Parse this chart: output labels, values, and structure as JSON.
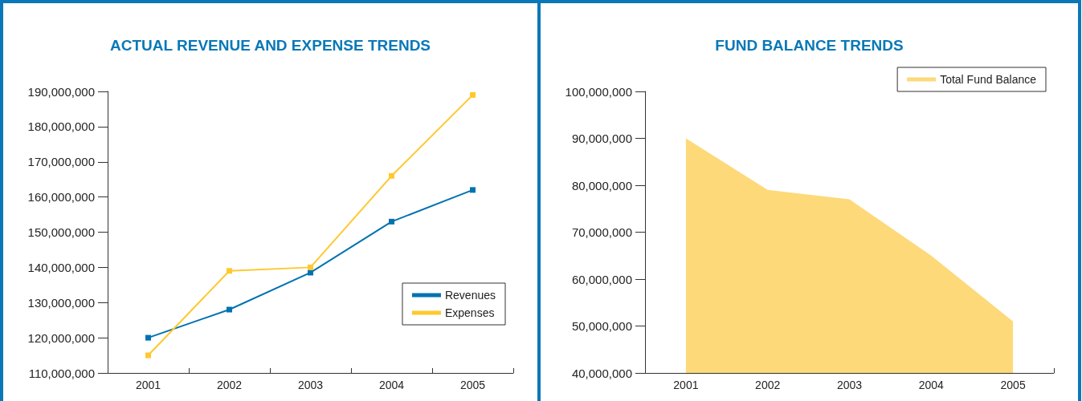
{
  "chart_data": [
    {
      "type": "line",
      "title": "ACTUAL REVENUE AND EXPENSE TRENDS",
      "categories": [
        "2001",
        "2002",
        "2003",
        "2004",
        "2005"
      ],
      "series": [
        {
          "name": "Revenues",
          "color": "#0072b1",
          "values": [
            120000000,
            128000000,
            138500000,
            153000000,
            162000000
          ]
        },
        {
          "name": "Expenses",
          "color": "#ffc82e",
          "values": [
            115000000,
            139000000,
            140000000,
            166000000,
            189000000
          ]
        }
      ],
      "ylim": [
        110000000,
        190000000
      ],
      "yticks": [
        {
          "value": 110000000,
          "label": "110,000,000"
        },
        {
          "value": 120000000,
          "label": "120,000,000"
        },
        {
          "value": 130000000,
          "label": "130,000,000"
        },
        {
          "value": 140000000,
          "label": "140,000,000"
        },
        {
          "value": 150000000,
          "label": "150,000,000"
        },
        {
          "value": 160000000,
          "label": "160,000,000"
        },
        {
          "value": 170000000,
          "label": "170,000,000"
        },
        {
          "value": 180000000,
          "label": "180,000,000"
        },
        {
          "value": 190000000,
          "label": "190,000,000"
        }
      ],
      "grid": false,
      "legend": "bottom right",
      "marker": "square",
      "line_style": "solid"
    },
    {
      "type": "area",
      "title": "FUND BALANCE TRENDS",
      "categories": [
        "2001",
        "2002",
        "2003",
        "2004",
        "2005"
      ],
      "series": [
        {
          "name": "Total Fund Balance",
          "color": "#fdd97a",
          "values": [
            90000000,
            79000000,
            77000000,
            65000000,
            51000000
          ]
        }
      ],
      "ylim": [
        40000000,
        100000000
      ],
      "yticks": [
        {
          "value": 40000000,
          "label": "40,000,000"
        },
        {
          "value": 50000000,
          "label": "50,000,000"
        },
        {
          "value": 60000000,
          "label": "60,000,000"
        },
        {
          "value": 70000000,
          "label": "70,000,000"
        },
        {
          "value": 80000000,
          "label": "80,000,000"
        },
        {
          "value": 90000000,
          "label": "90,000,000"
        },
        {
          "value": 100000000,
          "label": "100,000,000"
        }
      ],
      "grid": false,
      "legend": "top right"
    }
  ]
}
